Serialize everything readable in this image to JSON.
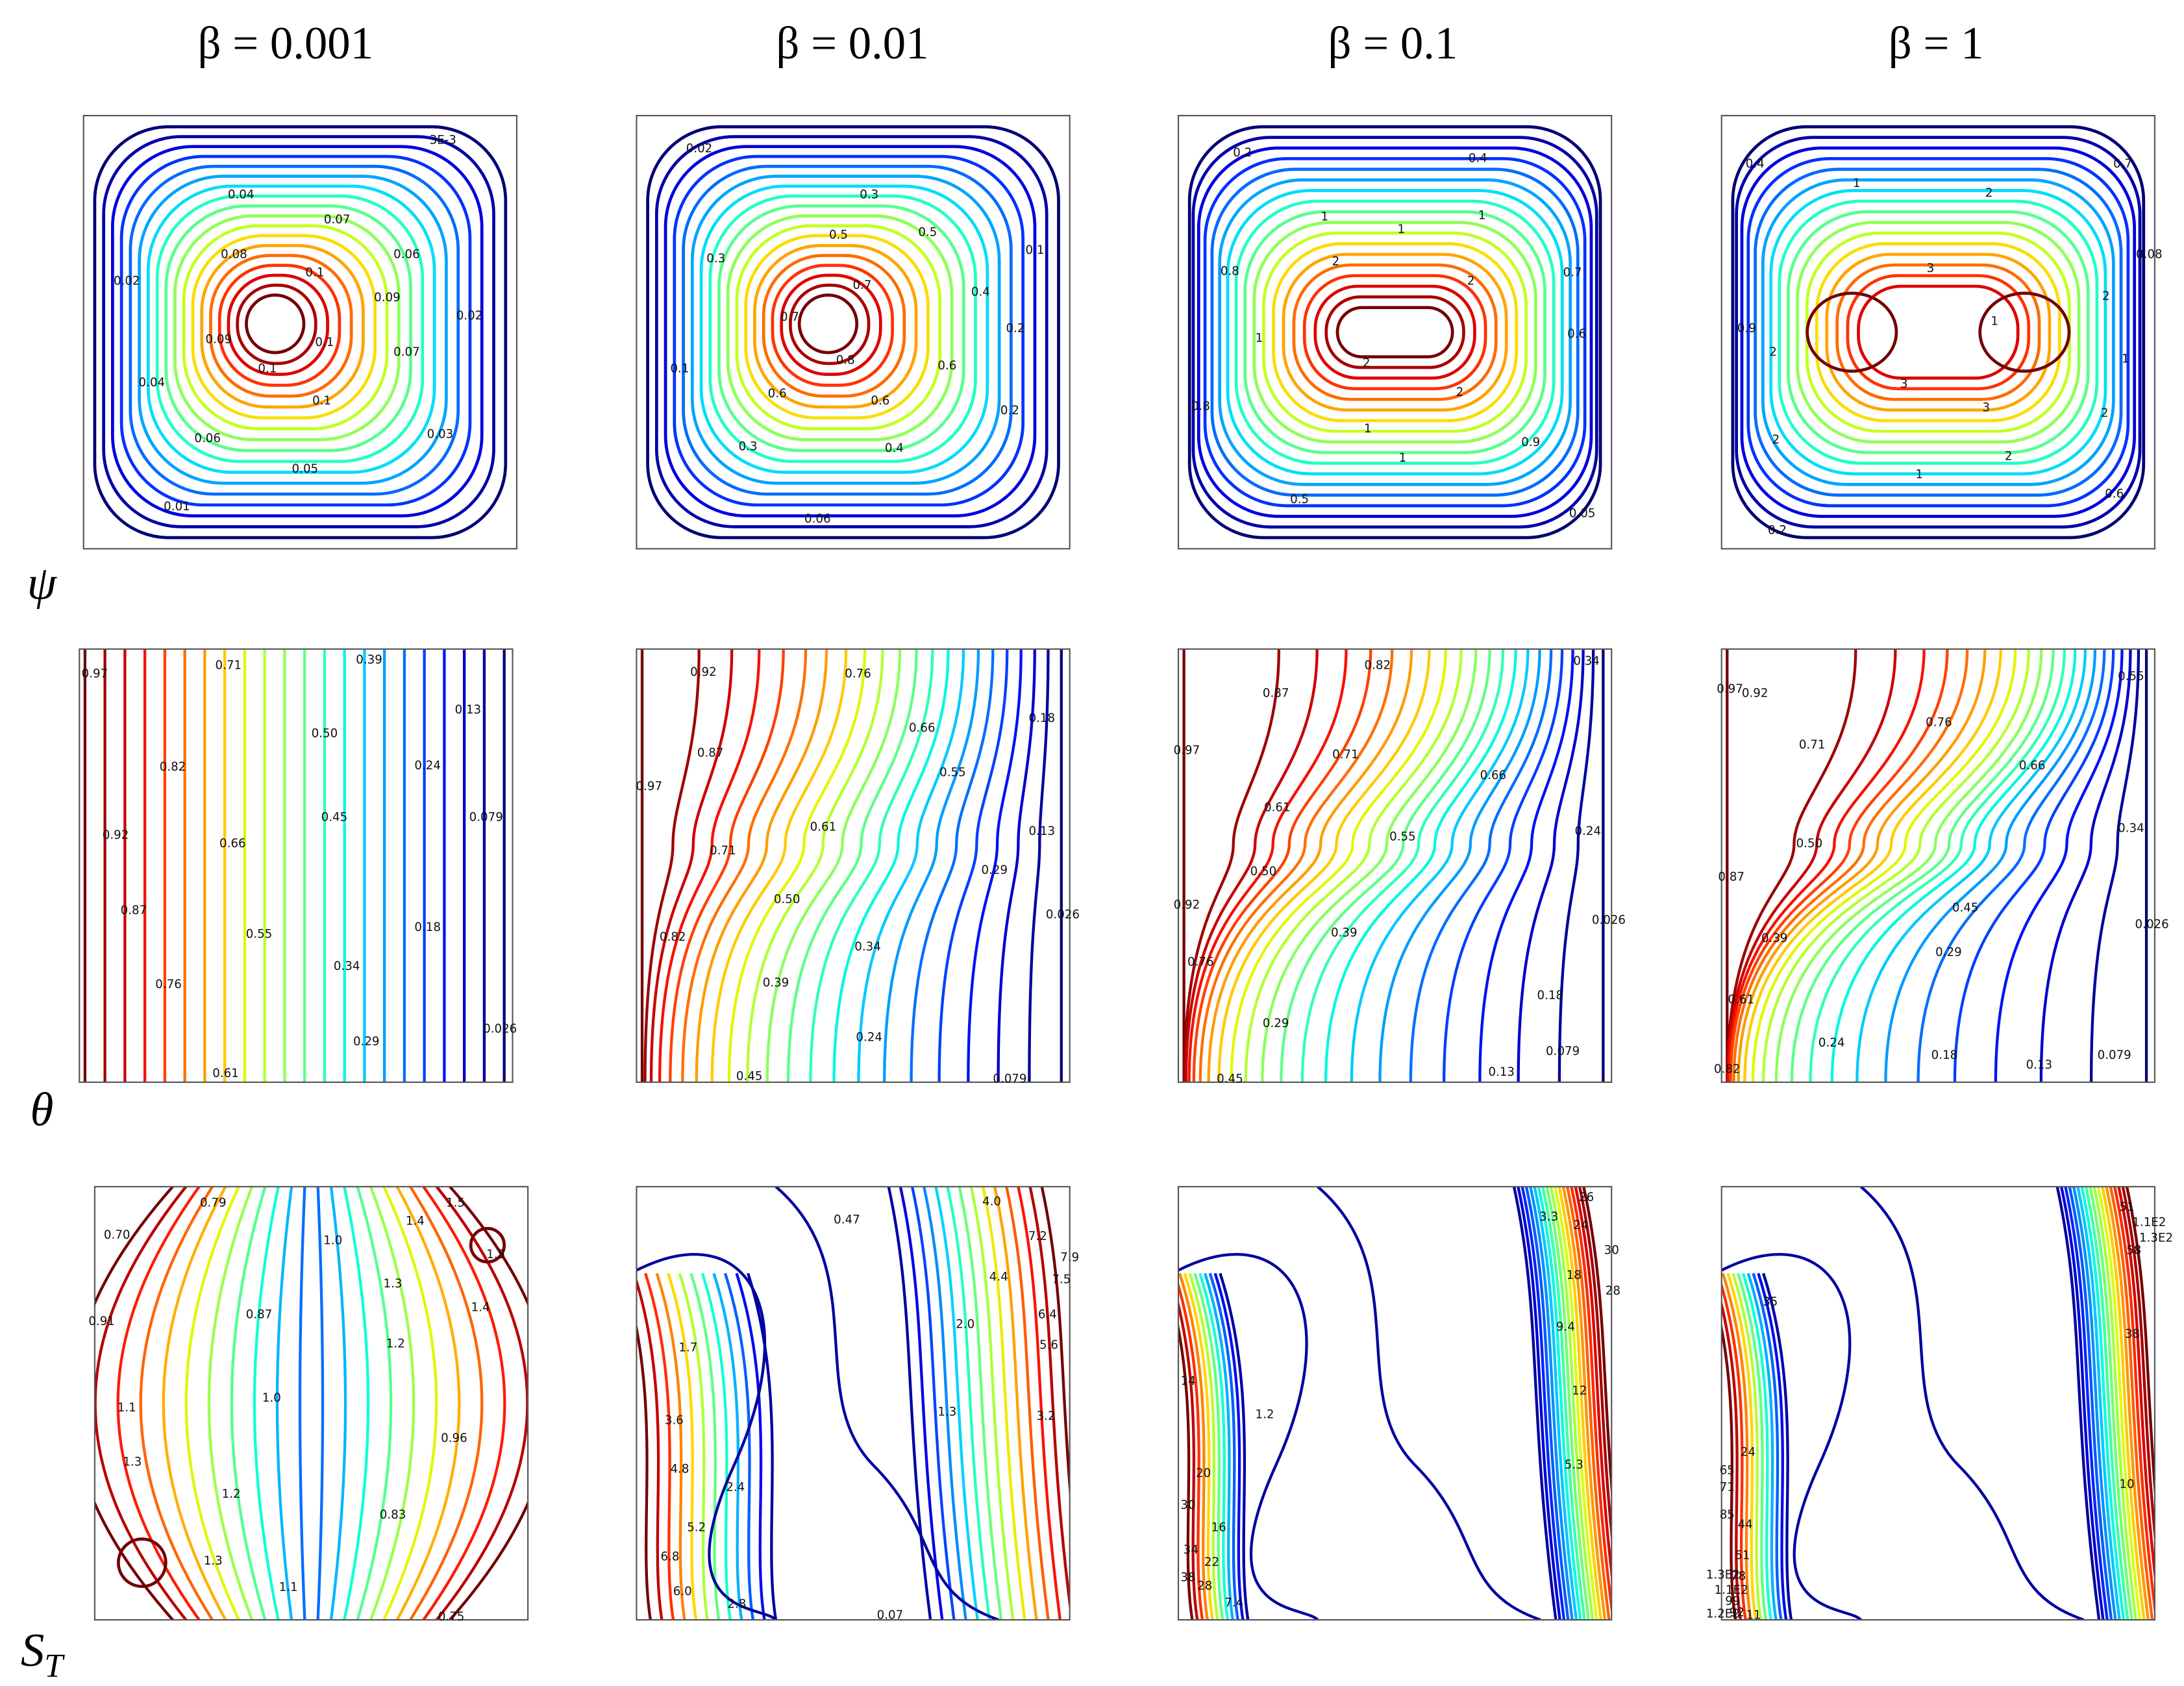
{
  "columns": [
    {
      "title": "β = 0.001"
    },
    {
      "title": "β = 0.01"
    },
    {
      "title": "β = 0.1"
    },
    {
      "title": "β = 1"
    }
  ],
  "rows": [
    {
      "label": "ψ"
    },
    {
      "label": "θ"
    },
    {
      "label": "S",
      "subscript": "T"
    }
  ],
  "panels": [
    [
      {
        "labels": [
          "3E-3",
          "0.04",
          "0.07",
          "0.08",
          "0.06",
          "0.1",
          "0.02",
          "0.09",
          "0.02",
          "0.09",
          "0.1",
          "0.07",
          "0.1",
          "0.04",
          "0.1",
          "0.06",
          "0.03",
          "0.05",
          "0.01"
        ]
      },
      {
        "labels": [
          "0.02",
          "0.3",
          "0.5",
          "0.5",
          "0.1",
          "0.3",
          "0.7",
          "0.4",
          "0.7",
          "0.2",
          "0.1",
          "0.8",
          "0.6",
          "0.6",
          "0.6",
          "0.2",
          "0.3",
          "0.4",
          "0.06"
        ]
      },
      {
        "labels": [
          "0.2",
          "0.4",
          "1",
          "1",
          "1",
          "2",
          "0.8",
          "0.7",
          "2",
          "1",
          "0.6",
          "2",
          "2",
          "0.8",
          "1",
          "0.9",
          "1",
          "0.5",
          "0.05"
        ]
      },
      {
        "labels": [
          "0.4",
          "0.7",
          "1",
          "2",
          "0.08",
          "3",
          "0.9",
          "2",
          "2",
          "1",
          "1",
          "3",
          "2",
          "3",
          "2",
          "2",
          "1",
          "0.6",
          "0.2"
        ]
      }
    ],
    [
      {
        "labels": [
          "0.97",
          "0.71",
          "0.39",
          "0.13",
          "0.50",
          "0.82",
          "0.24",
          "0.45",
          "0.079",
          "0.92",
          "0.66",
          "0.87",
          "0.55",
          "0.18",
          "0.34",
          "0.76",
          "0.026",
          "0.29",
          "0.61"
        ]
      },
      {
        "labels": [
          "0.92",
          "0.76",
          "0.18",
          "0.66",
          "0.87",
          "0.55",
          "0.97",
          "0.61",
          "0.13",
          "0.71",
          "0.29",
          "0.50",
          "0.026",
          "0.34",
          "0.82",
          "0.39",
          "0.24",
          "0.45",
          "0.079"
        ]
      },
      {
        "labels": [
          "0.82",
          "0.34",
          "0.87",
          "0.71",
          "0.97",
          "0.66",
          "0.61",
          "0.24",
          "0.55",
          "0.50",
          "0.92",
          "0.026",
          "0.39",
          "0.76",
          "0.18",
          "0.29",
          "0.079",
          "0.45",
          "0.13"
        ]
      },
      {
        "labels": [
          "0.55",
          "0.97",
          "0.92",
          "0.76",
          "0.71",
          "0.66",
          "0.50",
          "0.34",
          "0.87",
          "0.45",
          "0.026",
          "0.39",
          "0.29",
          "0.61",
          "0.24",
          "0.18",
          "0.13",
          "0.079",
          "0.82"
        ]
      }
    ],
    [
      {
        "labels": [
          "0.79",
          "1.5",
          "0.70",
          "1.4",
          "1.0",
          "1.5",
          "1.3",
          "0.91",
          "0.87",
          "1.4",
          "1.2",
          "1.0",
          "1.1",
          "0.96",
          "1.3",
          "1.2",
          "0.83",
          "1.3",
          "1.1",
          "0.75"
        ]
      },
      {
        "labels": [
          "0.47",
          "4.0",
          "7.2",
          "7.9",
          "7.5",
          "4.4",
          "6.4",
          "2.0",
          "5.6",
          "1.7",
          "1.3",
          "3.2",
          "3.6",
          "4.8",
          "2.4",
          "5.2",
          "6.8",
          "6.0",
          "2.8",
          "0.07"
        ]
      },
      {
        "labels": [
          "26",
          "3.3",
          "24",
          "30",
          "18",
          "28",
          "14",
          "9.4",
          "12",
          "1.2",
          "5.3",
          "20",
          "30",
          "16",
          "34",
          "22",
          "38",
          "28",
          "7.4"
        ]
      },
      {
        "labels": [
          "51",
          "1.1E2",
          "1.3E2",
          "58",
          "35",
          "38",
          "24",
          "65",
          "10",
          "71",
          "85",
          "44",
          "51",
          "1.3E2",
          "78",
          "1.1E2",
          "99",
          "1.2E2",
          "92",
          "11"
        ]
      }
    ]
  ]
}
